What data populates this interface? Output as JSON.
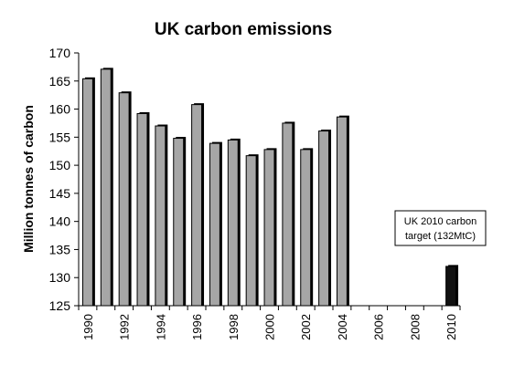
{
  "chart_data": {
    "type": "bar",
    "title": "UK carbon emissions",
    "xlabel": "",
    "ylabel": "Million tonnes of carbon",
    "ylim": [
      125,
      170
    ],
    "yticks": [
      125,
      130,
      135,
      140,
      145,
      150,
      155,
      160,
      165,
      170
    ],
    "xticks": [
      "1990",
      "1992",
      "1994",
      "1996",
      "1998",
      "2000",
      "2002",
      "2004",
      "2006",
      "2008",
      "2010"
    ],
    "grid": false,
    "series": [
      {
        "x": [
          1990,
          1991,
          1992,
          1993,
          1994,
          1995,
          1996,
          1997,
          1998,
          1999,
          2000,
          2001,
          2002,
          2003,
          2004
        ],
        "values": [
          165.4,
          167.1,
          162.9,
          159.2,
          157.0,
          154.8,
          160.8,
          153.9,
          154.5,
          151.7,
          152.8,
          157.5,
          152.8,
          156.1,
          158.6
        ],
        "color": "#a6a6a6"
      },
      {
        "x": [
          2010
        ],
        "values": [
          132
        ],
        "color": "#111111"
      }
    ],
    "annotation": {
      "lines": [
        "UK 2010 carbon",
        "target (132MtC)"
      ],
      "year": 2010
    }
  }
}
